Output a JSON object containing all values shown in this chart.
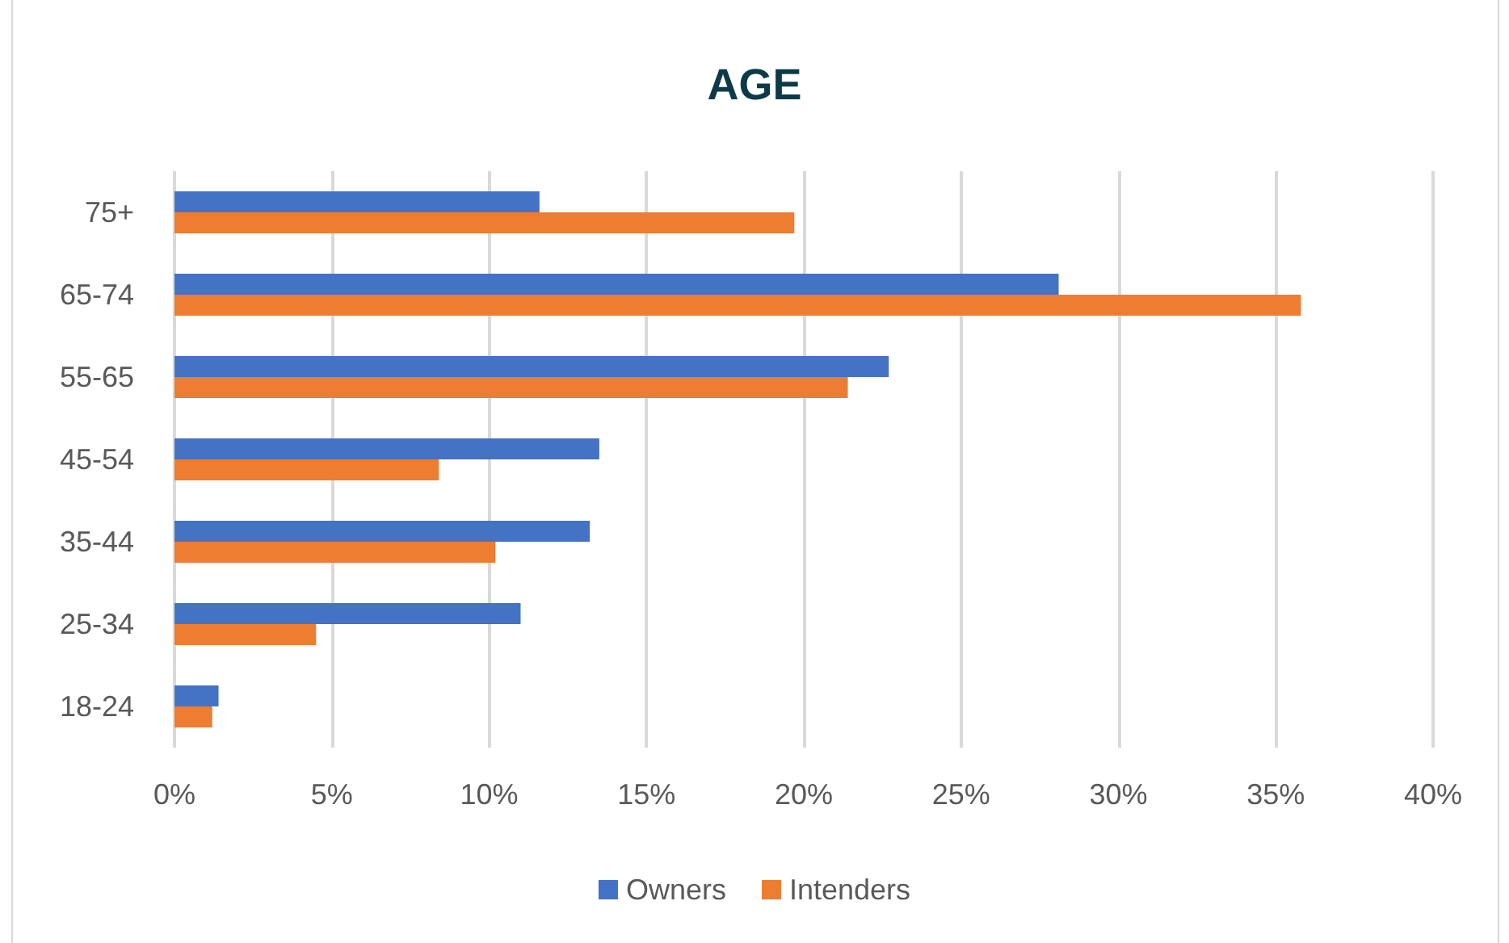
{
  "chart_data": {
    "type": "bar",
    "orientation": "horizontal",
    "title": "AGE",
    "categories": [
      "75+",
      "65-74",
      "55-65",
      "45-54",
      "35-44",
      "25-34",
      "18-24"
    ],
    "series": [
      {
        "name": "Owners",
        "color": "#4472c4",
        "values": [
          11.6,
          28.1,
          22.7,
          13.5,
          13.2,
          11.0,
          1.4
        ]
      },
      {
        "name": "Intenders",
        "color": "#ed7d31",
        "values": [
          19.7,
          35.8,
          21.4,
          8.4,
          10.2,
          4.5,
          1.2
        ]
      }
    ],
    "xlim": [
      0,
      40
    ],
    "xticks": [
      {
        "value": 0,
        "label": "0%"
      },
      {
        "value": 5,
        "label": "5%"
      },
      {
        "value": 10,
        "label": "10%"
      },
      {
        "value": 15,
        "label": "15%"
      },
      {
        "value": 20,
        "label": "20%"
      },
      {
        "value": 25,
        "label": "25%"
      },
      {
        "value": 30,
        "label": "30%"
      },
      {
        "value": 35,
        "label": "35%"
      },
      {
        "value": 40,
        "label": "40%"
      }
    ],
    "grid": "x",
    "legend": "bottom"
  }
}
